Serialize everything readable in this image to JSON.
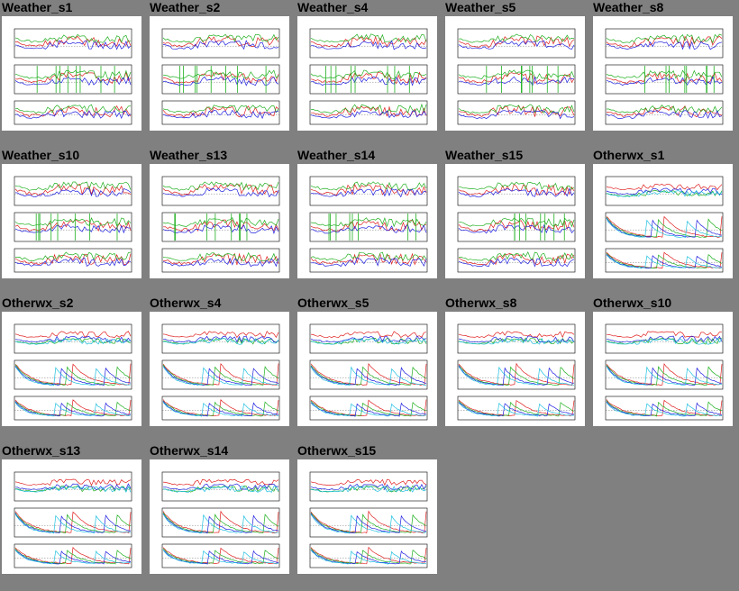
{
  "gallery": {
    "items": [
      {
        "label": "Weather_s1",
        "kind": "weather"
      },
      {
        "label": "Weather_s2",
        "kind": "weather"
      },
      {
        "label": "Weather_s4",
        "kind": "weather"
      },
      {
        "label": "Weather_s5",
        "kind": "weather"
      },
      {
        "label": "Weather_s8",
        "kind": "weather"
      },
      {
        "label": "Weather_s10",
        "kind": "weather"
      },
      {
        "label": "Weather_s13",
        "kind": "weather"
      },
      {
        "label": "Weather_s14",
        "kind": "weather"
      },
      {
        "label": "Weather_s15",
        "kind": "weather"
      },
      {
        "label": "Otherwx_s1",
        "kind": "otherwx"
      },
      {
        "label": "Otherwx_s2",
        "kind": "otherwx"
      },
      {
        "label": "Otherwx_s4",
        "kind": "otherwx"
      },
      {
        "label": "Otherwx_s5",
        "kind": "otherwx"
      },
      {
        "label": "Otherwx_s8",
        "kind": "otherwx"
      },
      {
        "label": "Otherwx_s10",
        "kind": "otherwx"
      },
      {
        "label": "Otherwx_s13",
        "kind": "otherwx"
      },
      {
        "label": "Otherwx_s14",
        "kind": "otherwx"
      },
      {
        "label": "Otherwx_s15",
        "kind": "otherwx"
      }
    ]
  },
  "colors": {
    "background": "#808080",
    "thumb_bg": "#ffffff",
    "series": [
      "#e02020",
      "#20b020",
      "#2020e0",
      "#20c0e0",
      "#e020e0"
    ]
  }
}
